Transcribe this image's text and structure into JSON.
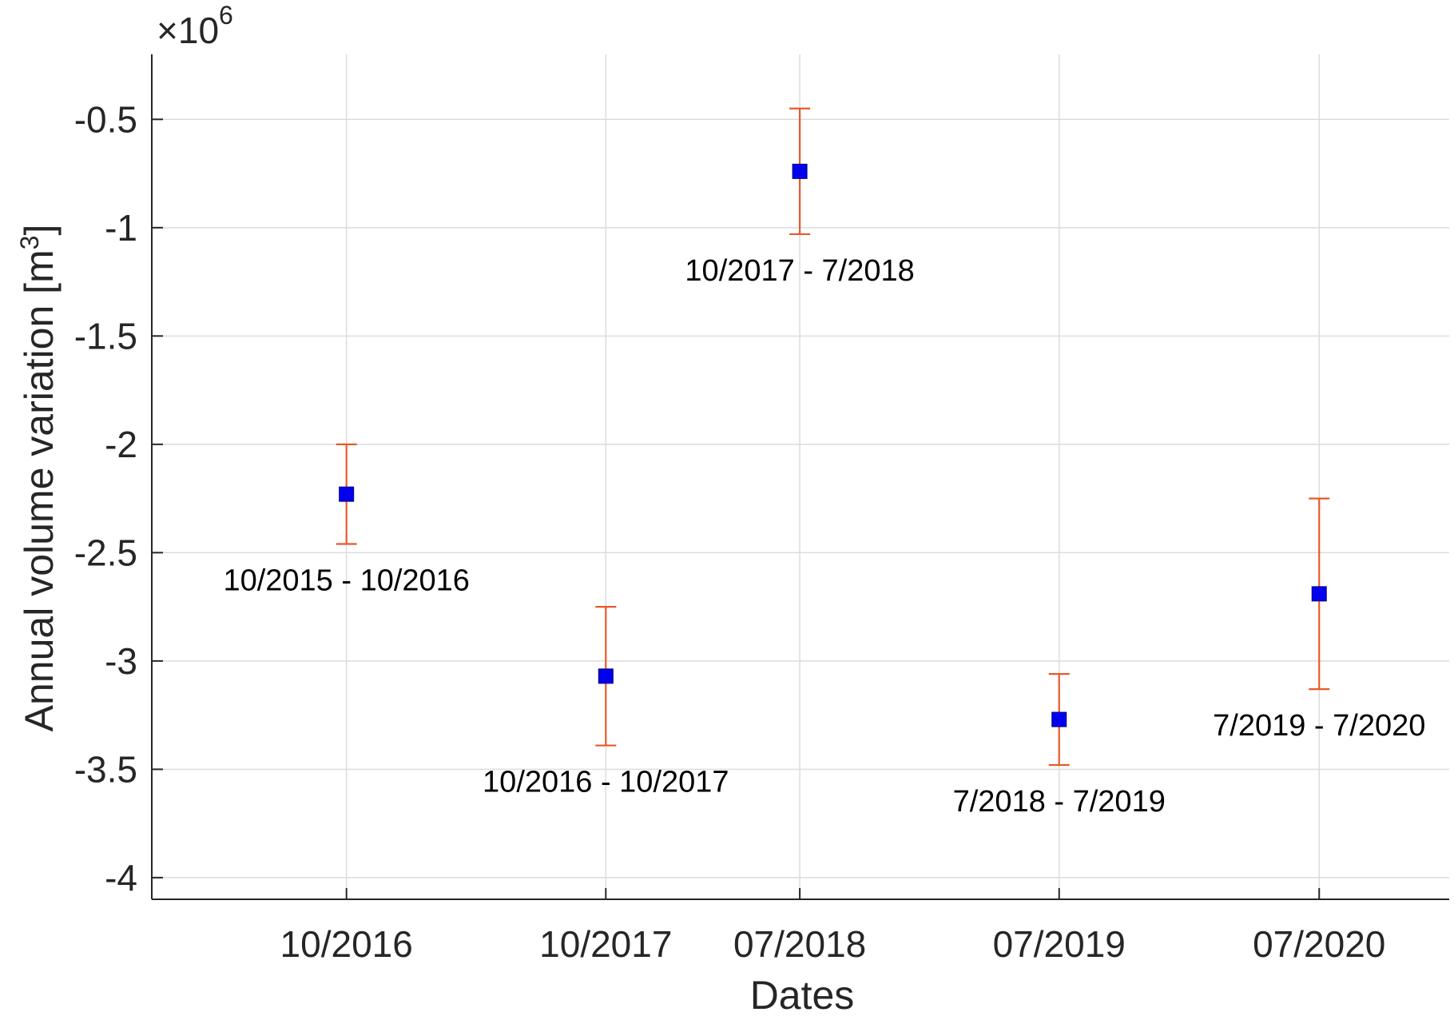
{
  "chart_data": {
    "type": "scatter",
    "title": "",
    "xlabel": "Dates",
    "ylabel": "Annual volume variation [m",
    "ylabel_superscript": "3",
    "ylabel_suffix": "]",
    "y_multiplier": "10",
    "y_multiplier_prefix": "×",
    "y_multiplier_exponent": "6",
    "ylim": [
      -4.1,
      -0.2
    ],
    "y_ticks": [
      -4,
      -3.5,
      -3,
      -2.5,
      -2,
      -1.5,
      -1,
      -0.5
    ],
    "y_tick_labels": [
      "-4",
      "-3.5",
      "-3",
      "-2.5",
      "-2",
      "-1.5",
      "-1",
      "-0.5"
    ],
    "xlim": [
      "2016-01-01",
      "2020-12-31"
    ],
    "x_ticks": [
      "2016-10-01",
      "2017-10-01",
      "2018-07-01",
      "2019-07-01",
      "2020-07-01"
    ],
    "x_tick_labels": [
      "10/2016",
      "10/2017",
      "07/2018",
      "07/2019",
      "07/2020"
    ],
    "grid": true,
    "series": [
      {
        "x": [
          "2016-10-01",
          "2017-10-01",
          "2018-07-01",
          "2019-07-01",
          "2020-07-01"
        ],
        "y": [
          -2.23,
          -3.07,
          -0.74,
          -3.27,
          -2.69
        ],
        "y_err_lower": [
          -2.46,
          -3.39,
          -1.03,
          -3.48,
          -3.13
        ],
        "y_err_upper": [
          -2.0,
          -2.75,
          -0.45,
          -3.06,
          -2.25
        ],
        "labels": [
          "10/2015 - 10/2016",
          "10/2016 - 10/2017",
          "10/2017 - 7/2018",
          "7/2018 - 7/2019",
          "7/2019 - 7/2020"
        ],
        "marker": "square",
        "marker_color": "#0000ee",
        "errorbar_color": "#e8592a"
      }
    ]
  },
  "colors": {
    "axis": "#262626",
    "grid": "#dcdcdc",
    "marker": "#0000ee",
    "errorbar": "#e8592a"
  }
}
